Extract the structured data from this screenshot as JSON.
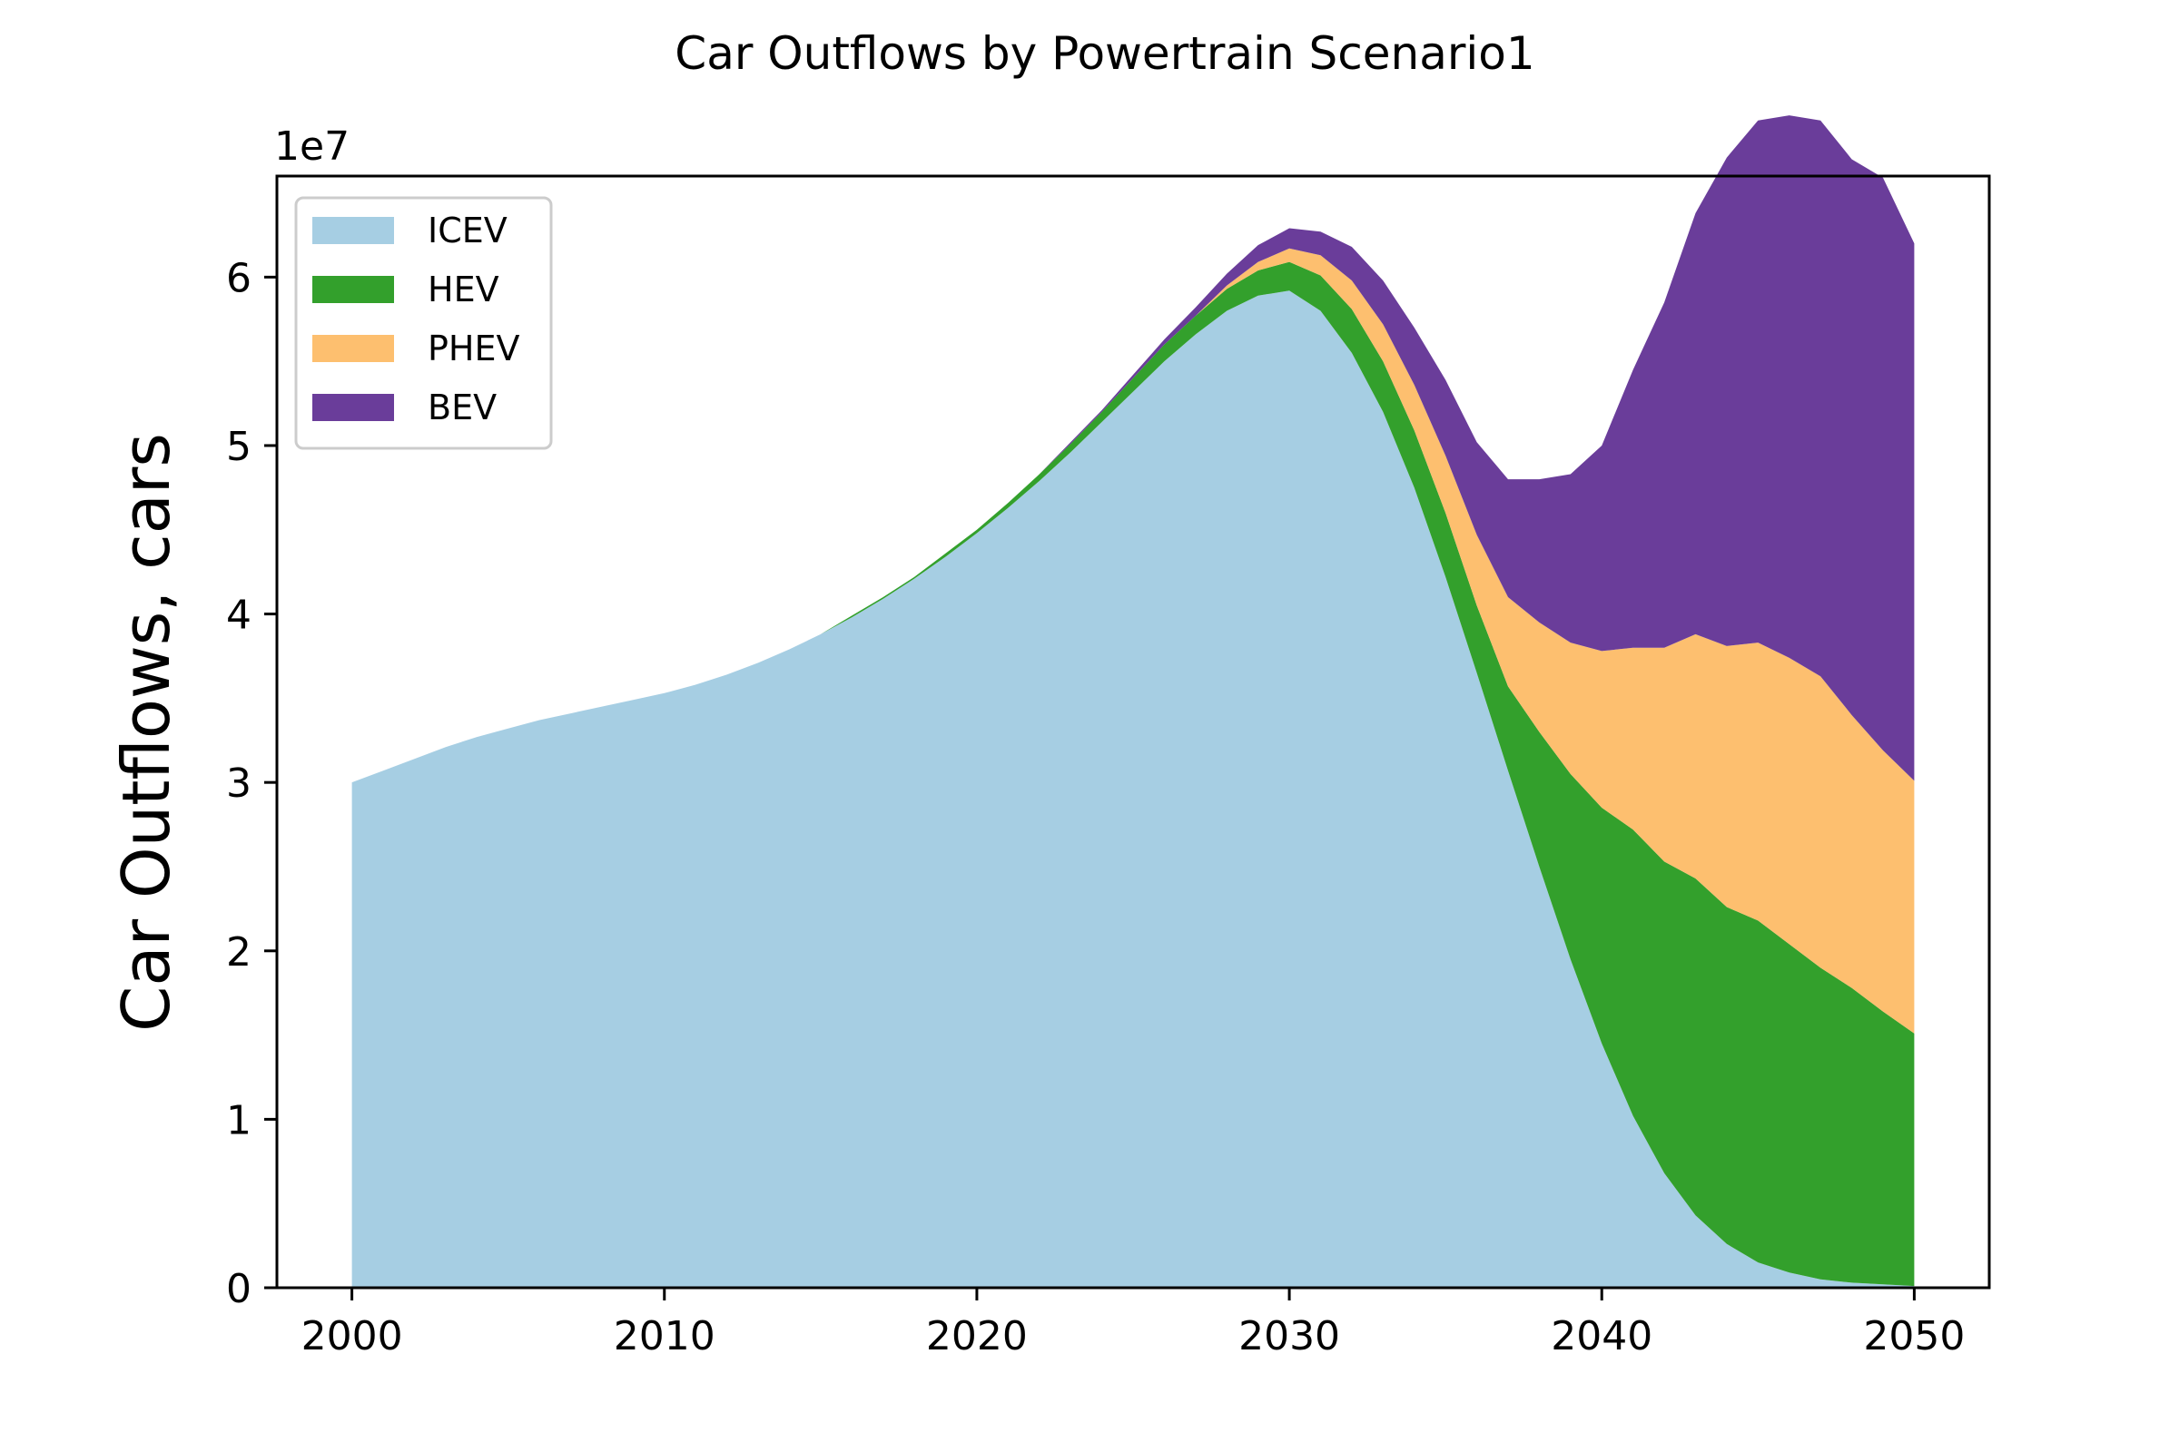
{
  "chart_data": {
    "type": "area",
    "stacked": true,
    "title": "Car Outflows by Powertrain Scenario1",
    "xlabel": "",
    "ylabel": "Car Outflows, cars",
    "y_offset_label": "1e7",
    "y_multiplier": 10000000,
    "xlim": [
      1997.6,
      2052.4
    ],
    "ylim": [
      0,
      6.6
    ],
    "x_ticks": [
      2000,
      2010,
      2020,
      2030,
      2040,
      2050
    ],
    "y_ticks": [
      0,
      1,
      2,
      3,
      4,
      5,
      6
    ],
    "grid": false,
    "legend_position": "upper left",
    "x": [
      2000,
      2001,
      2002,
      2003,
      2004,
      2005,
      2006,
      2007,
      2008,
      2009,
      2010,
      2011,
      2012,
      2013,
      2014,
      2015,
      2016,
      2017,
      2018,
      2019,
      2020,
      2021,
      2022,
      2023,
      2024,
      2025,
      2026,
      2027,
      2028,
      2029,
      2030,
      2031,
      2032,
      2033,
      2034,
      2035,
      2036,
      2037,
      2038,
      2039,
      2040,
      2041,
      2042,
      2043,
      2044,
      2045,
      2046,
      2047,
      2048,
      2049,
      2050
    ],
    "series": [
      {
        "name": "ICEV",
        "color": "#a6cee3",
        "values": [
          3.0,
          3.07,
          3.14,
          3.21,
          3.27,
          3.32,
          3.37,
          3.41,
          3.45,
          3.49,
          3.53,
          3.58,
          3.64,
          3.71,
          3.79,
          3.88,
          3.98,
          4.09,
          4.21,
          4.34,
          4.48,
          4.63,
          4.79,
          4.96,
          5.14,
          5.32,
          5.5,
          5.66,
          5.8,
          5.89,
          5.92,
          5.8,
          5.55,
          5.2,
          4.75,
          4.22,
          3.65,
          3.07,
          2.5,
          1.95,
          1.45,
          1.02,
          0.68,
          0.43,
          0.26,
          0.15,
          0.09,
          0.05,
          0.03,
          0.02,
          0.01
        ]
      },
      {
        "name": "HEV",
        "color": "#33a02c",
        "values": [
          0.0,
          0.0,
          0.0,
          0.0,
          0.0,
          0.0,
          0.0,
          0.0,
          0.0,
          0.0,
          0.0,
          0.0,
          0.0,
          0.0,
          0.0,
          0.0,
          0.01,
          0.01,
          0.01,
          0.02,
          0.02,
          0.03,
          0.04,
          0.05,
          0.06,
          0.08,
          0.1,
          0.11,
          0.13,
          0.15,
          0.17,
          0.21,
          0.26,
          0.3,
          0.34,
          0.38,
          0.4,
          0.5,
          0.8,
          1.1,
          1.4,
          1.7,
          1.85,
          2.0,
          2.0,
          2.03,
          1.95,
          1.85,
          1.75,
          1.62,
          1.5
        ]
      },
      {
        "name": "PHEV",
        "color": "#fdbf6f",
        "values": [
          0.0,
          0.0,
          0.0,
          0.0,
          0.0,
          0.0,
          0.0,
          0.0,
          0.0,
          0.0,
          0.0,
          0.0,
          0.0,
          0.0,
          0.0,
          0.0,
          0.0,
          0.0,
          0.0,
          0.0,
          0.0,
          0.0,
          0.0,
          0.0,
          0.0,
          0.0,
          0.0,
          0.0,
          0.02,
          0.05,
          0.08,
          0.12,
          0.17,
          0.22,
          0.27,
          0.34,
          0.42,
          0.53,
          0.65,
          0.78,
          0.93,
          1.08,
          1.27,
          1.45,
          1.55,
          1.65,
          1.7,
          1.73,
          1.62,
          1.55,
          1.5
        ]
      },
      {
        "name": "BEV",
        "color": "#6a3d9a",
        "values": [
          0.0,
          0.0,
          0.0,
          0.0,
          0.0,
          0.0,
          0.0,
          0.0,
          0.0,
          0.0,
          0.0,
          0.0,
          0.0,
          0.0,
          0.0,
          0.0,
          0.0,
          0.0,
          0.0,
          0.0,
          0.0,
          0.0,
          0.0,
          0.01,
          0.01,
          0.02,
          0.03,
          0.05,
          0.07,
          0.1,
          0.12,
          0.14,
          0.2,
          0.26,
          0.34,
          0.45,
          0.55,
          0.7,
          0.85,
          1.0,
          1.22,
          1.65,
          2.05,
          2.5,
          2.9,
          3.1,
          3.22,
          3.3,
          3.3,
          3.4,
          3.19
        ]
      }
    ]
  }
}
